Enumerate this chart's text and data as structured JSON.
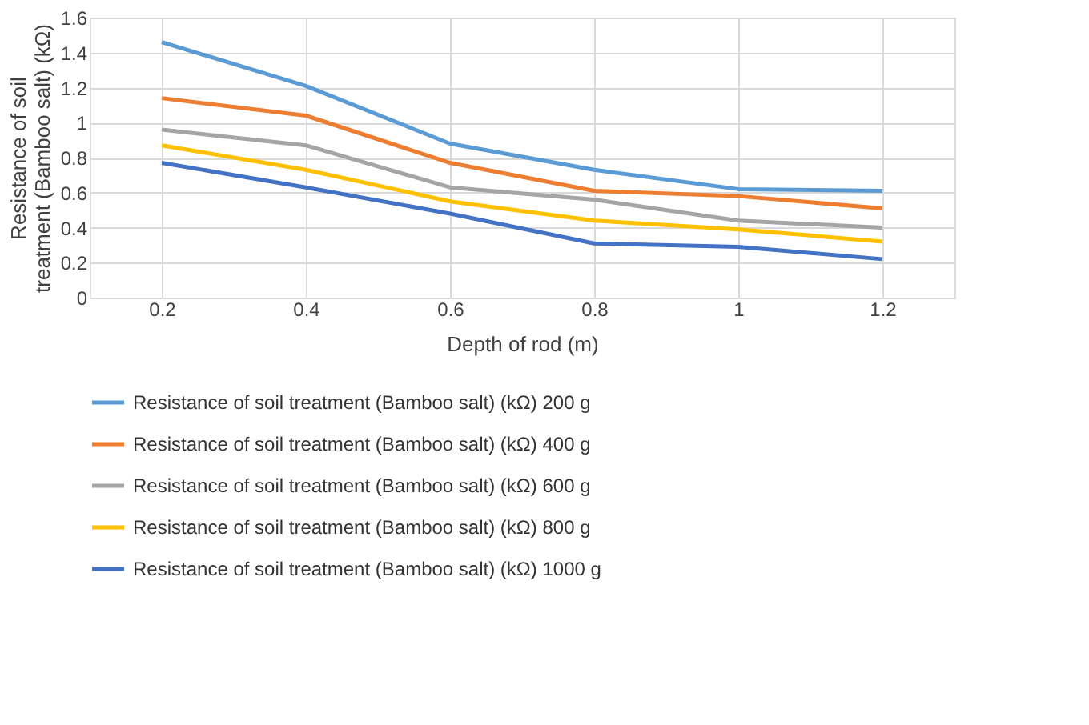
{
  "chart_data": {
    "type": "line",
    "xlabel": "Depth of rod (m)",
    "ylabel": "Resistance of soil treatment (Bamboo salt) (kΩ)",
    "categories": [
      "0.2",
      "0.4",
      "0.6",
      "0.8",
      "1",
      "1.2"
    ],
    "ylim": [
      0,
      1.6
    ],
    "yticks": [
      0,
      0.2,
      0.4,
      0.6,
      0.8,
      1,
      1.2,
      1.4,
      1.6
    ],
    "grid": true,
    "legend": "bottom",
    "marker": "none",
    "line_style": "solid",
    "series": [
      {
        "name": "Resistance of soil treatment (Bamboo salt) (kΩ) 200 g",
        "color": "#5b9bd5",
        "values": [
          1.46,
          1.21,
          0.88,
          0.73,
          0.62,
          0.61
        ]
      },
      {
        "name": "Resistance of soil treatment (Bamboo salt) (kΩ) 400 g",
        "color": "#ed7d31",
        "values": [
          1.14,
          1.04,
          0.77,
          0.61,
          0.58,
          0.51
        ]
      },
      {
        "name": "Resistance of soil treatment (Bamboo salt) (kΩ) 600 g",
        "color": "#a5a5a5",
        "values": [
          0.96,
          0.87,
          0.63,
          0.56,
          0.44,
          0.4
        ]
      },
      {
        "name": "Resistance of soil treatment (Bamboo salt) (kΩ) 800 g",
        "color": "#ffc000",
        "values": [
          0.87,
          0.73,
          0.55,
          0.44,
          0.39,
          0.32
        ]
      },
      {
        "name": "Resistance of soil treatment (Bamboo salt) (kΩ) 1000 g",
        "color": "#4472c4",
        "values": [
          0.77,
          0.63,
          0.48,
          0.31,
          0.29,
          0.22
        ]
      }
    ]
  }
}
